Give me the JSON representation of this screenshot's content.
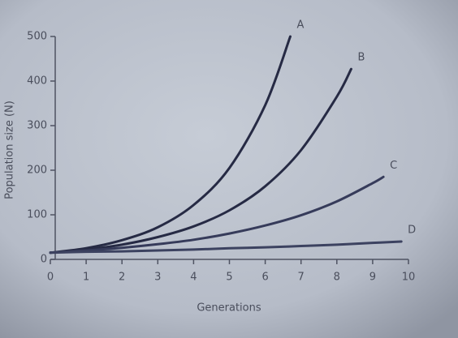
{
  "chart_data": {
    "type": "line",
    "x_label": "Generations",
    "y_label": "Population size (N)",
    "xlim": [
      0,
      10
    ],
    "ylim": [
      0,
      500
    ],
    "xticks": [
      0,
      1,
      2,
      3,
      4,
      5,
      6,
      7,
      8,
      9,
      10
    ],
    "yticks": [
      0,
      100,
      200,
      300,
      400,
      500
    ],
    "series": [
      {
        "name": "A",
        "color": "#262a44",
        "x": [
          0,
          1,
          2,
          3,
          4,
          5,
          6,
          6.7
        ],
        "values": [
          15,
          25,
          43,
          72,
          122,
          205,
          346,
          500
        ]
      },
      {
        "name": "B",
        "color": "#262a44",
        "x": [
          0,
          1,
          2,
          3,
          4,
          5,
          6,
          7,
          8,
          8.4
        ],
        "values": [
          15,
          22,
          33,
          50,
          74,
          110,
          164,
          245,
          365,
          427
        ]
      },
      {
        "name": "C",
        "color": "#363b5a",
        "x": [
          0,
          1,
          2,
          3,
          4,
          5,
          6,
          7,
          8,
          9,
          9.3
        ],
        "values": [
          15,
          20,
          26,
          34,
          44,
          58,
          76,
          99,
          130,
          171,
          185
        ]
      },
      {
        "name": "D",
        "color": "#3c4260",
        "x": [
          0,
          1,
          2,
          3,
          4,
          5,
          6,
          7,
          8,
          9,
          9.8
        ],
        "values": [
          15,
          17,
          18,
          20,
          22,
          25,
          27,
          30,
          33,
          37,
          40
        ]
      }
    ]
  }
}
